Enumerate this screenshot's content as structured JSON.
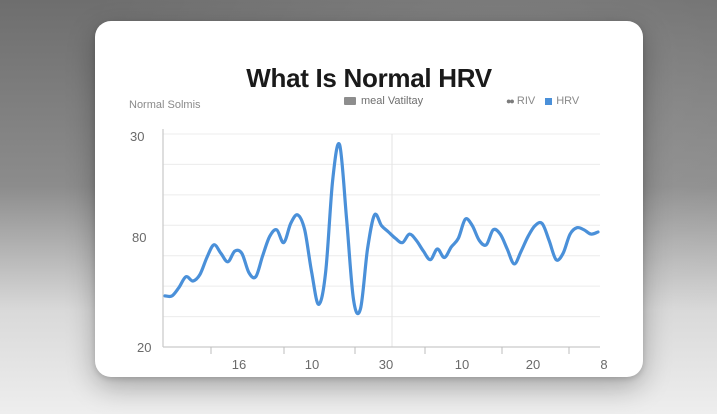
{
  "chart_data": {
    "type": "line",
    "title": "What Is Normal HRV",
    "legend": {
      "left_label": "Normal Solmis",
      "middle_label": "meal Vatiltay",
      "right_dots": "●●",
      "right_label_a": "RIV",
      "right_label_b": "HRV"
    },
    "y_tick_labels": [
      "30",
      "80",
      "20"
    ],
    "x_tick_labels": [
      "16",
      "10",
      "30",
      "10",
      "20",
      "8"
    ],
    "ylim": [
      0,
      100
    ],
    "grid": true,
    "series": [
      {
        "name": "HRV",
        "color": "#4a90d9",
        "x": [
          0,
          3,
          6,
          9,
          12,
          15,
          18,
          21,
          24,
          27,
          30,
          33,
          36,
          39,
          42,
          45,
          48,
          51,
          54,
          57,
          60,
          63,
          66,
          69,
          72,
          75,
          78,
          81,
          84,
          87,
          90,
          93,
          96,
          99,
          102,
          105,
          108,
          111,
          114,
          117,
          120,
          123,
          126,
          129,
          132,
          135,
          138,
          141,
          144,
          147,
          150,
          153,
          156,
          159,
          162,
          165,
          168,
          171,
          174,
          177,
          180,
          183,
          186
        ],
        "values": [
          24,
          24,
          28,
          33,
          31,
          34,
          42,
          48,
          44,
          40,
          45,
          44,
          35,
          33,
          43,
          52,
          55,
          49,
          58,
          62,
          55,
          35,
          20,
          35,
          78,
          95,
          60,
          22,
          18,
          46,
          62,
          57,
          54,
          51,
          49,
          53,
          50,
          45,
          41,
          46,
          42,
          47,
          51,
          60,
          57,
          50,
          48,
          55,
          53,
          46,
          39,
          45,
          52,
          57,
          58,
          50,
          41,
          44,
          53,
          56,
          55,
          53,
          54
        ]
      }
    ]
  }
}
